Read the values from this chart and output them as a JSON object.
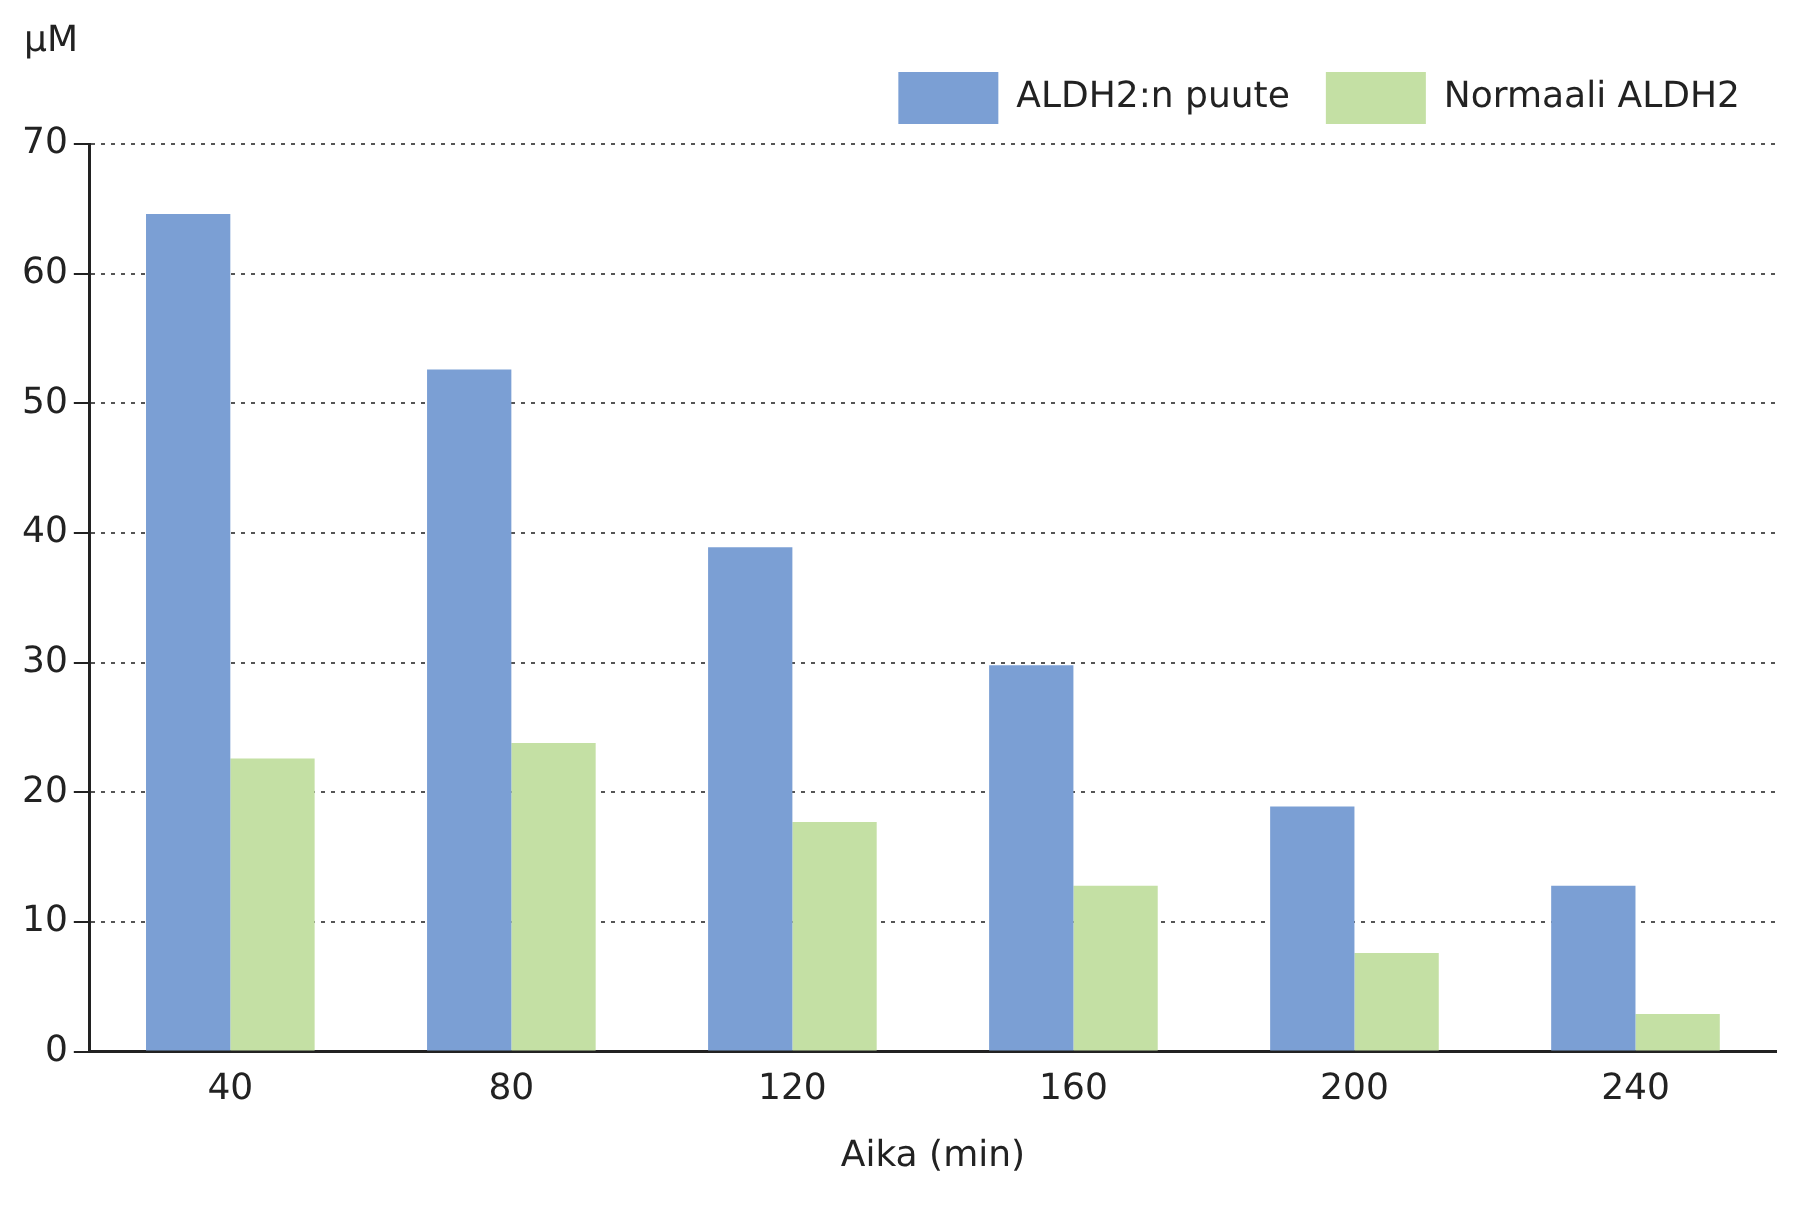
{
  "chart_data": {
    "type": "bar",
    "xlabel": "Aika (min)",
    "ylabel": "µM",
    "categories": [
      "40",
      "80",
      "120",
      "160",
      "200",
      "240"
    ],
    "series": [
      {
        "name": "ALDH2:n puute",
        "color": "#7b9fd4",
        "values": [
          64.6,
          52.6,
          38.9,
          29.8,
          18.9,
          12.8
        ]
      },
      {
        "name": "Normaali ALDH2",
        "color": "#c4e0a4",
        "values": [
          22.6,
          23.8,
          17.7,
          12.8,
          7.6,
          2.9
        ]
      }
    ],
    "ylim": [
      0,
      70
    ],
    "yticks": [
      0,
      10,
      20,
      30,
      40,
      50,
      60,
      70
    ],
    "grid": "y",
    "legend": "top right"
  }
}
